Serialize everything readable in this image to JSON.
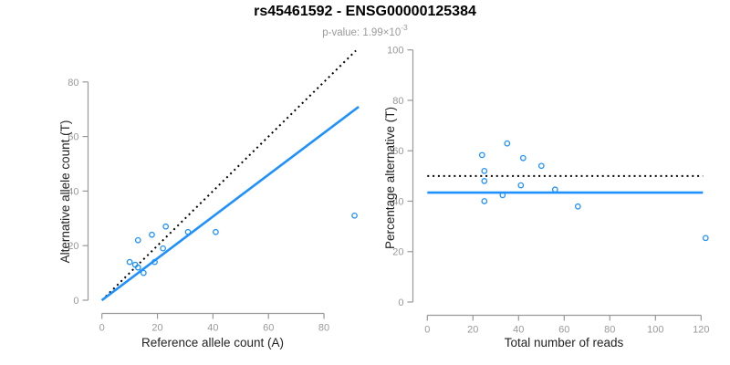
{
  "header": {
    "title": "rs45461592 - ENSG00000125384",
    "subtitle_prefix": "p-value: 1.99×10",
    "subtitle_exponent": "-3"
  },
  "colors": {
    "point": "#1E90FF",
    "fit_line": "#1E90FF",
    "reference_line": "#000000",
    "axis": "#999999",
    "tick_label": "#999999",
    "axis_label": "#222222",
    "title": "#000000",
    "subtitle": "#9b9b9b"
  },
  "chart_data": [
    {
      "type": "scatter",
      "panel": "left",
      "xlabel": "Reference allele count (A)",
      "ylabel": "Alternative allele count (T)",
      "xticks": [
        0,
        20,
        40,
        60,
        80
      ],
      "yticks": [
        0,
        20,
        40,
        60,
        80
      ],
      "xlim": [
        0,
        93
      ],
      "ylim": [
        0,
        92
      ],
      "grid": false,
      "legend": null,
      "points_xy": [
        [
          10,
          14
        ],
        [
          12,
          13
        ],
        [
          13,
          12
        ],
        [
          13,
          22
        ],
        [
          15,
          10
        ],
        [
          18,
          24
        ],
        [
          19,
          14
        ],
        [
          22,
          19
        ],
        [
          23,
          27
        ],
        [
          31,
          25
        ],
        [
          41,
          25
        ],
        [
          91,
          31
        ]
      ],
      "lines": [
        {
          "name": "identity-line",
          "style": "dotted",
          "color": "#000000",
          "from": [
            0,
            0
          ],
          "to": [
            91.5,
            91.5
          ]
        },
        {
          "name": "fit-line",
          "style": "solid",
          "color": "#1E90FF",
          "from": [
            0,
            0
          ],
          "to": [
            92.5,
            70.9
          ]
        }
      ]
    },
    {
      "type": "scatter",
      "panel": "right",
      "xlabel": "Total number of reads",
      "ylabel": "Percentage alternative (T)",
      "xticks": [
        0,
        20,
        40,
        60,
        80,
        100,
        120
      ],
      "yticks": [
        0,
        20,
        40,
        60,
        80,
        100
      ],
      "xlim": [
        0,
        122
      ],
      "ylim": [
        0,
        100
      ],
      "grid": false,
      "legend": null,
      "points_xy": [
        [
          24,
          58.3
        ],
        [
          25,
          52
        ],
        [
          25,
          48
        ],
        [
          25,
          40
        ],
        [
          33,
          42.4
        ],
        [
          35,
          62.9
        ],
        [
          41,
          46.3
        ],
        [
          42,
          57.1
        ],
        [
          50,
          54
        ],
        [
          56,
          44.6
        ],
        [
          66,
          37.9
        ],
        [
          122,
          25.4
        ]
      ],
      "lines": [
        {
          "name": "expected-50pct-line",
          "style": "dotted",
          "color": "#000000",
          "from": [
            0,
            50
          ],
          "to": [
            120.8,
            50
          ]
        },
        {
          "name": "mean-percentage-line",
          "style": "solid",
          "color": "#1E90FF",
          "from": [
            0,
            43.4
          ],
          "to": [
            120.8,
            43.4
          ]
        }
      ]
    }
  ]
}
